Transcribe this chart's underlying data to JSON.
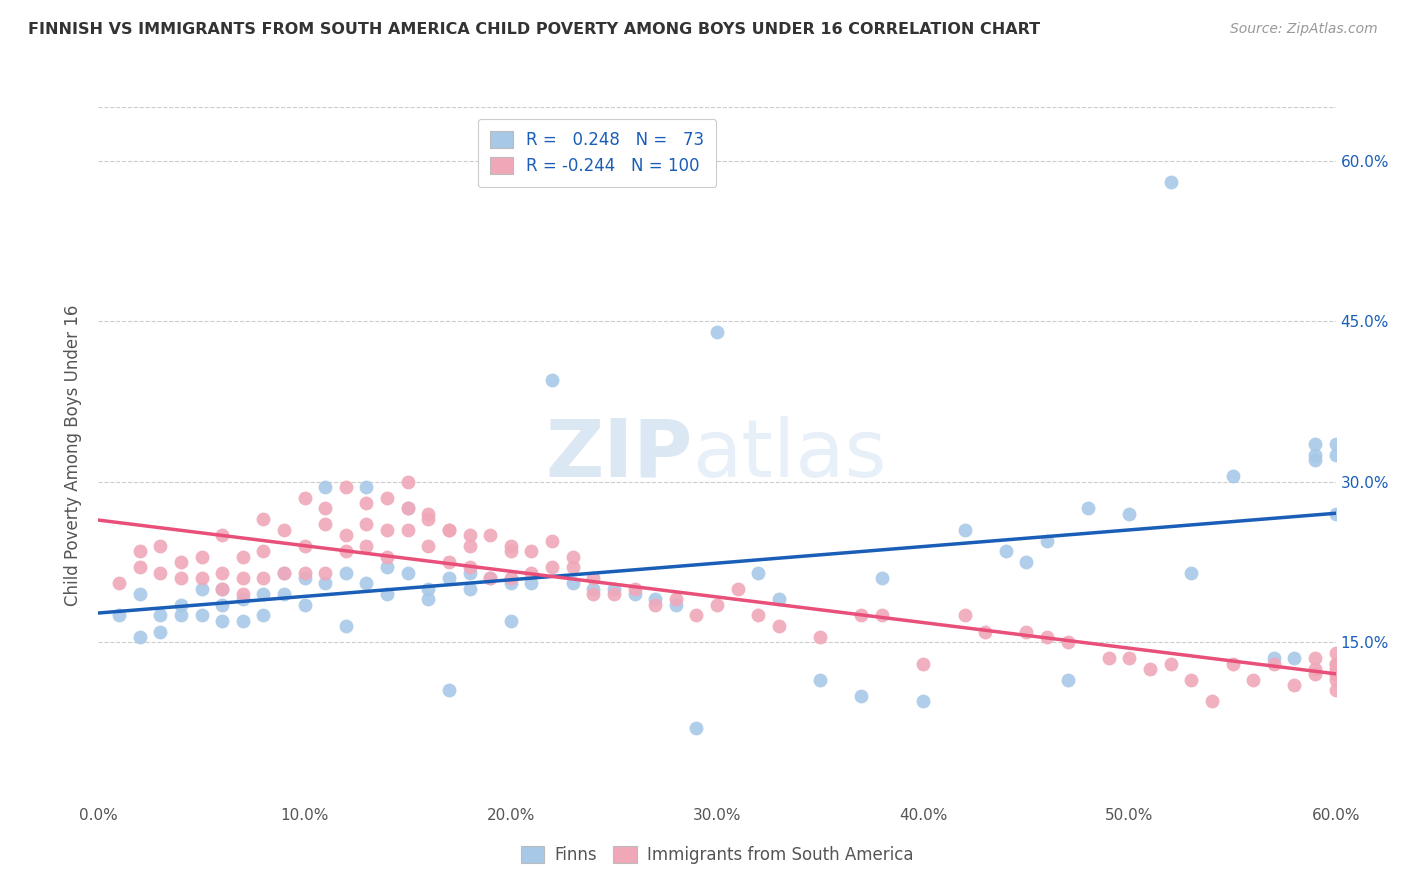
{
  "title": "FINNISH VS IMMIGRANTS FROM SOUTH AMERICA CHILD POVERTY AMONG BOYS UNDER 16 CORRELATION CHART",
  "source": "Source: ZipAtlas.com",
  "ylabel": "Child Poverty Among Boys Under 16",
  "xlim": [
    0.0,
    0.6
  ],
  "ylim": [
    0.0,
    0.65
  ],
  "finn_color": "#a8c8e8",
  "immigrant_color": "#f0a8b8",
  "finn_line_color": "#1a5eb8",
  "immigrant_line_color": "#e8507a",
  "finn_R": 0.248,
  "finn_N": 73,
  "immigrant_R": -0.244,
  "immigrant_N": 100,
  "legend_labels": [
    "Finns",
    "Immigrants from South America"
  ],
  "watermark_zip": "ZIP",
  "watermark_atlas": "atlas",
  "ytick_vals": [
    0.15,
    0.3,
    0.45,
    0.6
  ],
  "ytick_labels": [
    "15.0%",
    "30.0%",
    "45.0%",
    "60.0%"
  ],
  "xtick_vals": [
    0.0,
    0.1,
    0.2,
    0.3,
    0.4,
    0.5,
    0.6
  ],
  "xtick_labels": [
    "0.0%",
    "10.0%",
    "20.0%",
    "30.0%",
    "40.0%",
    "50.0%",
    "60.0%"
  ],
  "finn_x": [
    0.01,
    0.02,
    0.02,
    0.03,
    0.03,
    0.04,
    0.04,
    0.05,
    0.05,
    0.06,
    0.06,
    0.06,
    0.07,
    0.07,
    0.08,
    0.08,
    0.09,
    0.09,
    0.1,
    0.1,
    0.11,
    0.11,
    0.12,
    0.12,
    0.13,
    0.13,
    0.14,
    0.14,
    0.15,
    0.15,
    0.16,
    0.16,
    0.17,
    0.17,
    0.18,
    0.18,
    0.19,
    0.2,
    0.2,
    0.21,
    0.22,
    0.23,
    0.24,
    0.25,
    0.26,
    0.27,
    0.28,
    0.29,
    0.3,
    0.32,
    0.33,
    0.35,
    0.37,
    0.38,
    0.4,
    0.42,
    0.44,
    0.45,
    0.46,
    0.47,
    0.48,
    0.5,
    0.52,
    0.53,
    0.55,
    0.57,
    0.58,
    0.59,
    0.59,
    0.59,
    0.6,
    0.6,
    0.6
  ],
  "finn_y": [
    0.175,
    0.195,
    0.155,
    0.175,
    0.16,
    0.185,
    0.175,
    0.2,
    0.175,
    0.185,
    0.17,
    0.2,
    0.19,
    0.17,
    0.195,
    0.175,
    0.215,
    0.195,
    0.21,
    0.185,
    0.205,
    0.295,
    0.215,
    0.165,
    0.205,
    0.295,
    0.22,
    0.195,
    0.275,
    0.215,
    0.2,
    0.19,
    0.21,
    0.105,
    0.215,
    0.2,
    0.21,
    0.17,
    0.205,
    0.205,
    0.395,
    0.205,
    0.2,
    0.2,
    0.195,
    0.19,
    0.185,
    0.07,
    0.44,
    0.215,
    0.19,
    0.115,
    0.1,
    0.21,
    0.095,
    0.255,
    0.235,
    0.225,
    0.245,
    0.115,
    0.275,
    0.27,
    0.58,
    0.215,
    0.305,
    0.135,
    0.135,
    0.335,
    0.32,
    0.325,
    0.325,
    0.335,
    0.27
  ],
  "imm_x": [
    0.01,
    0.02,
    0.02,
    0.03,
    0.03,
    0.04,
    0.04,
    0.05,
    0.05,
    0.06,
    0.06,
    0.06,
    0.07,
    0.07,
    0.07,
    0.08,
    0.08,
    0.08,
    0.09,
    0.09,
    0.1,
    0.1,
    0.1,
    0.11,
    0.11,
    0.11,
    0.12,
    0.12,
    0.12,
    0.13,
    0.13,
    0.13,
    0.14,
    0.14,
    0.14,
    0.15,
    0.15,
    0.15,
    0.16,
    0.16,
    0.16,
    0.17,
    0.17,
    0.17,
    0.18,
    0.18,
    0.18,
    0.19,
    0.19,
    0.2,
    0.2,
    0.2,
    0.21,
    0.21,
    0.22,
    0.22,
    0.23,
    0.23,
    0.24,
    0.24,
    0.25,
    0.26,
    0.27,
    0.28,
    0.29,
    0.3,
    0.31,
    0.32,
    0.33,
    0.35,
    0.37,
    0.38,
    0.4,
    0.42,
    0.43,
    0.45,
    0.46,
    0.47,
    0.49,
    0.5,
    0.51,
    0.52,
    0.53,
    0.54,
    0.55,
    0.56,
    0.57,
    0.58,
    0.59,
    0.59,
    0.59,
    0.6,
    0.6,
    0.6,
    0.6,
    0.6,
    0.6,
    0.6,
    0.6,
    0.6
  ],
  "imm_y": [
    0.205,
    0.22,
    0.235,
    0.215,
    0.24,
    0.225,
    0.21,
    0.23,
    0.21,
    0.215,
    0.25,
    0.2,
    0.195,
    0.23,
    0.21,
    0.21,
    0.235,
    0.265,
    0.255,
    0.215,
    0.24,
    0.215,
    0.285,
    0.26,
    0.275,
    0.215,
    0.25,
    0.235,
    0.295,
    0.28,
    0.24,
    0.26,
    0.255,
    0.23,
    0.285,
    0.3,
    0.275,
    0.255,
    0.27,
    0.265,
    0.24,
    0.255,
    0.255,
    0.225,
    0.22,
    0.25,
    0.24,
    0.25,
    0.21,
    0.24,
    0.21,
    0.235,
    0.235,
    0.215,
    0.22,
    0.245,
    0.22,
    0.23,
    0.195,
    0.21,
    0.195,
    0.2,
    0.185,
    0.19,
    0.175,
    0.185,
    0.2,
    0.175,
    0.165,
    0.155,
    0.175,
    0.175,
    0.13,
    0.175,
    0.16,
    0.16,
    0.155,
    0.15,
    0.135,
    0.135,
    0.125,
    0.13,
    0.115,
    0.095,
    0.13,
    0.115,
    0.13,
    0.11,
    0.125,
    0.135,
    0.12,
    0.115,
    0.12,
    0.105,
    0.12,
    0.12,
    0.14,
    0.125,
    0.13,
    0.13
  ]
}
